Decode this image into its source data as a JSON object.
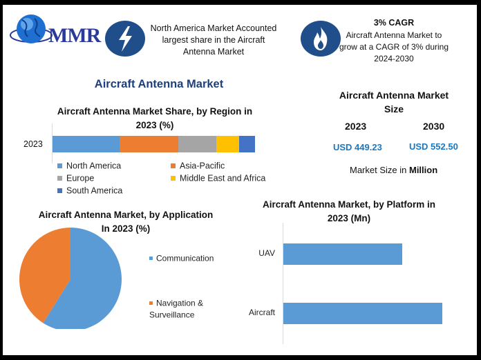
{
  "header": {
    "logo_text": "MMR",
    "box1_text": "North America Market Accounted largest share in the Aircraft Antenna Market",
    "box2_title": "3% CAGR",
    "box2_text": "Aircraft Antenna Market to grow at a CAGR of 3% during 2024-2030"
  },
  "main_title": "Aircraft Antenna Market",
  "size_panel": {
    "title": "Aircraft Antenna Market Size",
    "year1": "2023",
    "year2": "2030",
    "value1": "USD 449.23",
    "value2": "USD 552.50",
    "note_prefix": "Market Size in ",
    "note_bold": "Million"
  },
  "colors": {
    "blue": "#5b9bd5",
    "orange": "#ed7d31",
    "gray": "#a5a5a5",
    "yellow": "#ffc000",
    "darkblue": "#4472c4",
    "icon_circle": "#1f4e8a"
  },
  "icons": [
    "globe-icon",
    "lightning-icon",
    "flame-icon"
  ],
  "chart_data": [
    {
      "type": "bar",
      "orientation": "horizontal-stacked",
      "title": "Aircraft Antenna Market Share, by Region in 2023 (%)",
      "categories": [
        "2023"
      ],
      "series": [
        {
          "name": "North America",
          "values": [
            33
          ]
        },
        {
          "name": "Asia-Pacific",
          "values": [
            29
          ]
        },
        {
          "name": "Europe",
          "values": [
            19
          ]
        },
        {
          "name": "Middle East and Africa",
          "values": [
            11
          ]
        },
        {
          "name": "South America",
          "values": [
            8
          ]
        }
      ],
      "legend": "bottom"
    },
    {
      "type": "pie",
      "title": "Aircraft Antenna Market, by Application In 2023 (%)",
      "labels": [
        "Communication",
        "Navigation & Surveillance"
      ],
      "values": [
        59,
        41
      ],
      "legend": "right"
    },
    {
      "type": "bar",
      "orientation": "horizontal",
      "title": "Aircraft Antenna Market, by Platform in 2023 (Mn)",
      "categories": [
        "UAV",
        "Aircraft"
      ],
      "values": [
        168,
        225
      ],
      "xlim": [
        0,
        230
      ]
    }
  ]
}
